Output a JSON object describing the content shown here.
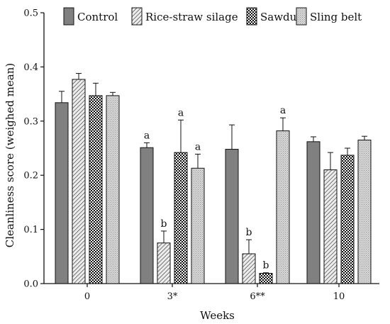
{
  "chart_data": {
    "type": "bar",
    "xlabel": "Weeks",
    "ylabel": "Cleanliness score (weighed mean)",
    "ylim": [
      0,
      0.5
    ],
    "yticks": [
      0.0,
      0.1,
      0.2,
      0.3,
      0.4,
      0.5
    ],
    "ytick_labels": [
      "0.0",
      "0.1",
      "0.2",
      "0.3",
      "0.4",
      "0.5"
    ],
    "categories": [
      "0",
      "3*",
      "6**",
      "10"
    ],
    "legend_position": "top-right",
    "grid": false,
    "series": [
      {
        "name": "Control",
        "pattern": "solid-dark",
        "color": "#808080",
        "values": [
          0.334,
          0.251,
          0.248,
          0.262
        ],
        "errors": [
          0.021,
          0.009,
          0.045,
          0.009
        ],
        "labels": [
          "",
          "a",
          "",
          ""
        ]
      },
      {
        "name": "Rice-straw silage",
        "pattern": "diagonal",
        "color": "#d8d8d8",
        "values": [
          0.377,
          0.075,
          0.055,
          0.21
        ],
        "errors": [
          0.011,
          0.022,
          0.026,
          0.032
        ],
        "labels": [
          "",
          "b",
          "b",
          ""
        ]
      },
      {
        "name": "Sawdust",
        "pattern": "checker",
        "color": "#1a1a1a",
        "values": [
          0.347,
          0.242,
          0.019,
          0.237
        ],
        "errors": [
          0.023,
          0.06,
          0.001,
          0.013
        ],
        "labels": [
          "",
          "a",
          "b",
          ""
        ]
      },
      {
        "name": "Sling belt",
        "pattern": "dotted-light",
        "color": "#d0d0d0",
        "values": [
          0.347,
          0.213,
          0.282,
          0.265
        ],
        "errors": [
          0.006,
          0.026,
          0.024,
          0.007
        ],
        "labels": [
          "",
          "a",
          "a",
          ""
        ]
      }
    ]
  }
}
